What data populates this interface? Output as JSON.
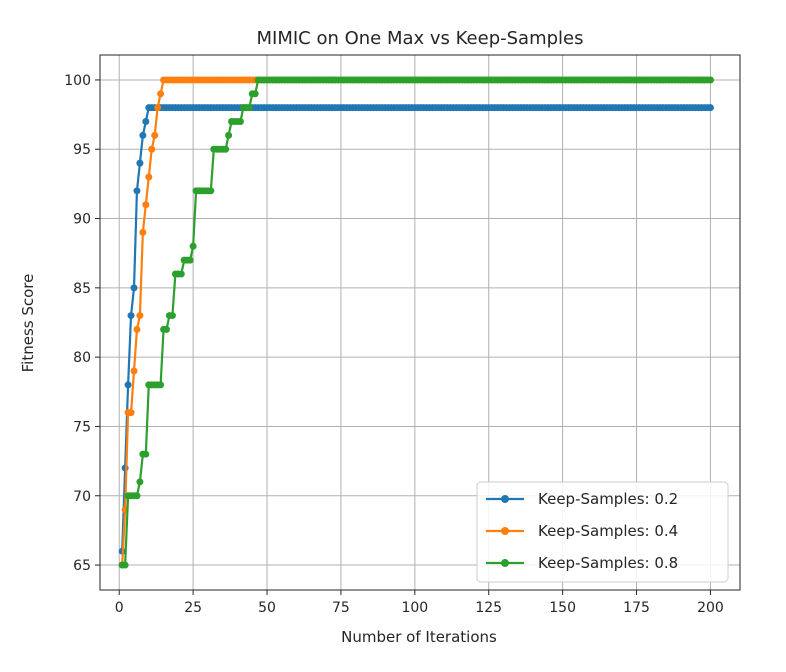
{
  "chart_data": {
    "type": "line",
    "title": "MIMIC on One Max vs Keep-Samples",
    "xlabel": "Number of Iterations",
    "ylabel": "Fitness Score",
    "xlim": [
      -6.5,
      210
    ],
    "ylim": [
      63.2,
      101.8
    ],
    "xticks": [
      0,
      25,
      50,
      75,
      100,
      125,
      150,
      175,
      200
    ],
    "yticks": [
      65,
      70,
      75,
      80,
      85,
      90,
      95,
      100
    ],
    "grid": true,
    "legend_position": "lower-right",
    "series": [
      {
        "name": "Keep-Samples: 0.2",
        "color": "#1f77b4",
        "x": [
          1,
          2,
          3,
          4,
          5,
          6,
          7,
          8,
          9,
          10,
          11,
          200
        ],
        "y": [
          66,
          72,
          78,
          83,
          85,
          92,
          94,
          96,
          97,
          98,
          98,
          98
        ]
      },
      {
        "name": "Keep-Samples: 0.4",
        "color": "#ff7f0e",
        "x": [
          1,
          2,
          3,
          4,
          5,
          6,
          7,
          8,
          9,
          10,
          11,
          12,
          13,
          14,
          15,
          200
        ],
        "y": [
          65,
          69,
          76,
          76,
          79,
          82,
          83,
          89,
          91,
          93,
          95,
          96,
          98,
          99,
          100,
          100
        ]
      },
      {
        "name": "Keep-Samples: 0.8",
        "color": "#2ca02c",
        "x": [
          1,
          2,
          3,
          4,
          5,
          6,
          7,
          8,
          9,
          10,
          11,
          12,
          13,
          14,
          15,
          16,
          17,
          18,
          19,
          20,
          21,
          22,
          23,
          24,
          25,
          26,
          27,
          28,
          29,
          30,
          31,
          32,
          33,
          34,
          35,
          36,
          37,
          38,
          39,
          40,
          41,
          42,
          43,
          44,
          45,
          46,
          47,
          200
        ],
        "y": [
          65,
          65,
          70,
          70,
          70,
          70,
          71,
          73,
          73,
          78,
          78,
          78,
          78,
          78,
          82,
          82,
          83,
          83,
          86,
          86,
          86,
          87,
          87,
          87,
          88,
          92,
          92,
          92,
          92,
          92,
          92,
          95,
          95,
          95,
          95,
          95,
          96,
          97,
          97,
          97,
          97,
          98,
          98,
          98,
          99,
          99,
          100,
          100
        ]
      }
    ]
  }
}
